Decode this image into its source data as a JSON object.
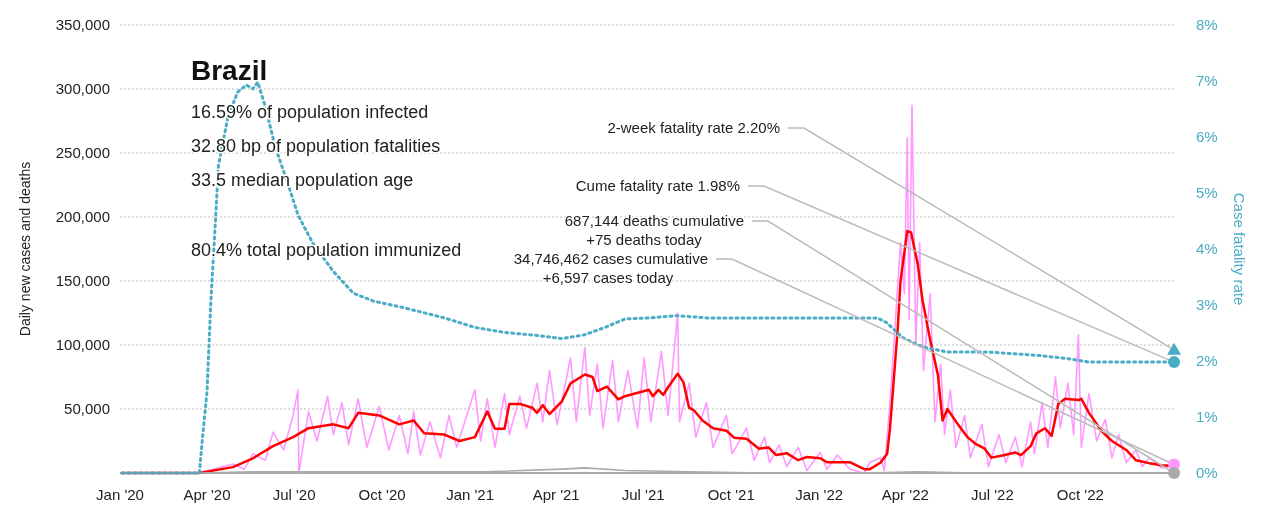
{
  "chart_data": {
    "type": "line",
    "title": "Brazil",
    "ylabel": "Daily new cases and deaths",
    "y2label": "Case fatality rate",
    "xlim": [
      "2020-01-01",
      "2023-01-09"
    ],
    "xticks": [
      {
        "value": "2020-01-01",
        "label": "Jan '20"
      },
      {
        "value": "2020-04-01",
        "label": "Apr '20"
      },
      {
        "value": "2020-07-01",
        "label": "Jul '20"
      },
      {
        "value": "2020-10-01",
        "label": "Oct '20"
      },
      {
        "value": "2021-01-01",
        "label": "Jan '21"
      },
      {
        "value": "2021-04-01",
        "label": "Apr '21"
      },
      {
        "value": "2021-07-01",
        "label": "Jul '21"
      },
      {
        "value": "2021-10-01",
        "label": "Oct '21"
      },
      {
        "value": "2022-01-01",
        "label": "Jan '22"
      },
      {
        "value": "2022-04-01",
        "label": "Apr '22"
      },
      {
        "value": "2022-07-01",
        "label": "Jul '22"
      },
      {
        "value": "2022-10-01",
        "label": "Oct '22"
      }
    ],
    "ylim": [
      0,
      350000
    ],
    "yticks": [
      {
        "value": 0,
        "label": null
      },
      {
        "value": 50000,
        "label": "50,000"
      },
      {
        "value": 100000,
        "label": "100,000"
      },
      {
        "value": 150000,
        "label": "150,000"
      },
      {
        "value": 200000,
        "label": "200,000"
      },
      {
        "value": 250000,
        "label": "250,000"
      },
      {
        "value": 300000,
        "label": "300,000"
      },
      {
        "value": 350000,
        "label": "350,000"
      }
    ],
    "y2lim": [
      0,
      8
    ],
    "y2ticks": [
      {
        "value": 0,
        "label": "0%"
      },
      {
        "value": 1,
        "label": "1%"
      },
      {
        "value": 2,
        "label": "2%"
      },
      {
        "value": 3,
        "label": "3%"
      },
      {
        "value": 4,
        "label": "4%"
      },
      {
        "value": 5,
        "label": "5%"
      },
      {
        "value": 6,
        "label": "6%"
      },
      {
        "value": 7,
        "label": "7%"
      },
      {
        "value": 8,
        "label": "8%"
      }
    ],
    "grid": "y",
    "annotations": [
      "16.59% of population infected",
      "32.80 bp of population fatalities",
      "33.5 median population age",
      "80.4% total population immunized",
      "2-week fatality rate 2.20%",
      "Cume fatality rate 1.98%",
      "687,144 deaths cumulative\n+75 deaths today",
      "34,746,462 cases cumulative\n+6,597 cases today"
    ],
    "series": [
      {
        "color": "#ff99ff",
        "x": [
          "2020-01-03",
          "2020-03-24",
          "2020-04-28",
          "2020-05-10",
          "2020-05-19",
          "2020-06-01",
          "2020-06-09",
          "2020-06-20",
          "2020-06-30",
          "2020-07-05",
          "2020-07-06",
          "2020-07-16",
          "2020-07-25",
          "2020-08-05",
          "2020-08-11",
          "2020-08-20",
          "2020-08-27",
          "2020-09-06",
          "2020-09-15",
          "2020-09-28",
          "2020-10-08",
          "2020-10-19",
          "2020-10-28",
          "2020-11-03",
          "2020-11-10",
          "2020-11-20",
          "2020-12-01",
          "2020-12-10",
          "2020-12-18",
          "2021-01-06",
          "2021-01-12",
          "2021-01-19",
          "2021-01-27",
          "2021-02-06",
          "2021-02-11",
          "2021-02-22",
          "2021-03-01",
          "2021-03-12",
          "2021-03-18",
          "2021-03-25",
          "2021-04-02",
          "2021-04-16",
          "2021-04-22",
          "2021-05-01",
          "2021-05-06",
          "2021-05-14",
          "2021-05-20",
          "2021-05-30",
          "2021-06-05",
          "2021-06-15",
          "2021-06-25",
          "2021-07-02",
          "2021-07-09",
          "2021-07-20",
          "2021-07-27",
          "2021-08-06",
          "2021-08-08",
          "2021-08-18",
          "2021-08-25",
          "2021-09-05",
          "2021-09-12",
          "2021-09-26",
          "2021-10-02",
          "2021-10-17",
          "2021-10-25",
          "2021-11-05",
          "2021-11-10",
          "2021-11-20",
          "2021-11-28",
          "2021-12-10",
          "2021-12-19",
          "2022-01-02",
          "2022-01-09",
          "2022-01-20",
          "2022-02-02",
          "2022-02-17",
          "2022-02-23",
          "2022-03-06",
          "2022-03-10",
          "2022-03-16",
          "2022-03-20",
          "2022-03-27",
          "2022-03-31",
          "2022-04-03",
          "2022-04-05",
          "2022-04-08",
          "2022-04-12",
          "2022-04-16",
          "2022-04-20",
          "2022-04-27",
          "2022-05-02",
          "2022-05-08",
          "2022-05-12",
          "2022-05-18",
          "2022-05-24",
          "2022-06-02",
          "2022-06-08",
          "2022-06-20",
          "2022-06-27",
          "2022-07-08",
          "2022-07-15",
          "2022-07-25",
          "2022-08-01",
          "2022-08-10",
          "2022-08-14",
          "2022-08-22",
          "2022-08-28",
          "2022-09-05",
          "2022-09-10",
          "2022-09-18",
          "2022-09-24",
          "2022-09-29",
          "2022-10-02",
          "2022-10-10",
          "2022-10-18",
          "2022-10-27",
          "2022-11-03",
          "2022-11-10",
          "2022-11-18",
          "2022-11-28",
          "2022-12-05",
          "2022-12-12",
          "2022-12-25",
          "2023-01-07"
        ],
        "values": [
          0,
          0,
          7000,
          3000,
          15000,
          10000,
          32000,
          18000,
          45000,
          65000,
          0,
          48000,
          25000,
          60000,
          30000,
          55000,
          22000,
          58000,
          20000,
          52000,
          18000,
          45000,
          15000,
          48000,
          14000,
          40000,
          12000,
          45000,
          20000,
          65000,
          25000,
          58000,
          20000,
          62000,
          30000,
          60000,
          35000,
          70000,
          40000,
          80000,
          38000,
          90000,
          40000,
          98000,
          45000,
          85000,
          35000,
          88000,
          40000,
          80000,
          35000,
          90000,
          40000,
          95000,
          45000,
          125000,
          40000,
          70000,
          28000,
          55000,
          20000,
          45000,
          15000,
          35000,
          10000,
          28000,
          8000,
          22000,
          5000,
          20000,
          2000,
          16000,
          3000,
          14000,
          3000,
          0,
          8000,
          12000,
          2000,
          55000,
          100000,
          180000,
          140000,
          262000,
          120000,
          287000,
          100000,
          180000,
          80000,
          140000,
          40000,
          85000,
          30000,
          65000,
          20000,
          45000,
          12000,
          38000,
          5000,
          30000,
          8000,
          28000,
          5000,
          40000,
          15000,
          55000,
          20000,
          75000,
          35000,
          70000,
          30000,
          108000,
          20000,
          62000,
          25000,
          42000,
          12000,
          30000,
          8000,
          18000,
          5000,
          12000,
          4000,
          6000
        ]
      },
      {
        "color": "#ff0000",
        "x": [
          "2020-01-03",
          "2020-03-24",
          "2020-04-28",
          "2020-05-19",
          "2020-06-09",
          "2020-06-30",
          "2020-07-16",
          "2020-08-11",
          "2020-08-27",
          "2020-09-06",
          "2020-09-28",
          "2020-10-19",
          "2020-11-03",
          "2020-11-14",
          "2020-12-05",
          "2020-12-21",
          "2021-01-06",
          "2021-01-19",
          "2021-01-27",
          "2021-02-06",
          "2021-02-11",
          "2021-02-22",
          "2021-03-07",
          "2021-03-12",
          "2021-03-18",
          "2021-03-25",
          "2021-04-07",
          "2021-04-16",
          "2021-05-01",
          "2021-05-09",
          "2021-05-14",
          "2021-05-24",
          "2021-06-05",
          "2021-06-12",
          "2021-07-07",
          "2021-07-11",
          "2021-07-17",
          "2021-07-22",
          "2021-07-27",
          "2021-08-06",
          "2021-08-12",
          "2021-08-18",
          "2021-08-23",
          "2021-09-01",
          "2021-09-12",
          "2021-09-26",
          "2021-10-04",
          "2021-10-17",
          "2021-10-30",
          "2021-11-09",
          "2021-11-17",
          "2021-11-28",
          "2021-12-10",
          "2021-12-19",
          "2022-01-02",
          "2022-01-09",
          "2022-02-02",
          "2022-02-17",
          "2022-02-23",
          "2022-03-06",
          "2022-03-13",
          "2022-03-16",
          "2022-03-24",
          "2022-03-27",
          "2022-04-03",
          "2022-04-07",
          "2022-04-14",
          "2022-04-19",
          "2022-04-27",
          "2022-05-05",
          "2022-05-10",
          "2022-05-15",
          "2022-05-26",
          "2022-06-05",
          "2022-06-13",
          "2022-06-23",
          "2022-06-30",
          "2022-07-14",
          "2022-07-25",
          "2022-07-31",
          "2022-08-10",
          "2022-08-16",
          "2022-08-25",
          "2022-09-01",
          "2022-09-08",
          "2022-09-15",
          "2022-09-29",
          "2022-10-02",
          "2022-10-10",
          "2022-10-23",
          "2022-11-03",
          "2022-11-18",
          "2022-11-28",
          "2022-12-12",
          "2022-12-25",
          "2023-01-07"
        ],
        "values": [
          0,
          0,
          4600,
          11500,
          21000,
          28000,
          35000,
          38000,
          35000,
          47000,
          45000,
          38000,
          41000,
          31000,
          30000,
          25000,
          28000,
          48000,
          34500,
          34500,
          54000,
          54000,
          51000,
          47000,
          53000,
          46000,
          56000,
          70000,
          77000,
          75000,
          64000,
          67500,
          57500,
          60000,
          65000,
          60000,
          65000,
          61000,
          67000,
          77500,
          71000,
          51000,
          49000,
          41000,
          35000,
          33000,
          27600,
          26800,
          19000,
          20000,
          14000,
          15500,
          10000,
          12500,
          11500,
          8400,
          8400,
          3000,
          3000,
          8000,
          15000,
          35000,
          112000,
          150000,
          189000,
          188000,
          163000,
          135000,
          104000,
          77000,
          41000,
          50000,
          38000,
          28000,
          23000,
          19000,
          12000,
          14000,
          16000,
          14000,
          21000,
          31000,
          35000,
          29000,
          54000,
          58000,
          57000,
          58000,
          47000,
          33000,
          25000,
          18000,
          10000,
          7700,
          6000,
          5400
        ]
      },
      {
        "color": "#aaaaaa",
        "x": [
          "2020-01-03",
          "2020-03-24",
          "2020-05-19",
          "2020-07-16",
          "2020-09-06",
          "2020-11-14",
          "2021-01-19",
          "2021-04-07",
          "2021-05-01",
          "2021-06-12",
          "2021-08-18",
          "2021-11-09",
          "2022-02-17",
          "2022-04-14",
          "2022-06-13",
          "2022-08-16",
          "2023-01-07"
        ],
        "values": [
          0,
          0,
          1000,
          1000,
          1000,
          1000,
          1000,
          3000,
          4000,
          2000,
          1000,
          0,
          0,
          1000,
          0,
          0,
          0
        ]
      },
      {
        "axis": "y2",
        "color": "#4bacc6",
        "line_style": "dotted",
        "x": [
          "2020-01-03",
          "2020-03-24",
          "2020-03-27",
          "2020-04-01",
          "2020-04-05",
          "2020-04-09",
          "2020-04-13",
          "2020-04-23",
          "2020-05-03",
          "2020-05-12",
          "2020-05-19",
          "2020-05-24",
          "2020-06-01",
          "2020-06-11",
          "2020-06-25",
          "2020-07-05",
          "2020-07-21",
          "2020-08-11",
          "2020-09-01",
          "2020-09-22",
          "2020-10-24",
          "2020-12-05",
          "2021-01-06",
          "2021-02-06",
          "2021-03-10",
          "2021-04-07",
          "2021-05-01",
          "2021-05-22",
          "2021-06-12",
          "2021-07-09",
          "2021-08-04",
          "2021-09-05",
          "2021-11-07",
          "2022-03-03",
          "2022-03-13",
          "2022-03-29",
          "2022-04-19",
          "2022-05-15",
          "2022-06-26",
          "2022-08-18",
          "2022-09-19",
          "2022-10-10",
          "2023-01-07"
        ],
        "values": [
          0,
          0,
          0.58,
          1.46,
          3.07,
          4.26,
          5.5,
          6.37,
          6.8,
          6.93,
          6.86,
          6.98,
          6.54,
          5.84,
          5.14,
          4.61,
          4.09,
          3.6,
          3.21,
          3.07,
          2.95,
          2.77,
          2.6,
          2.51,
          2.46,
          2.4,
          2.47,
          2.6,
          2.75,
          2.77,
          2.81,
          2.77,
          2.77,
          2.77,
          2.68,
          2.42,
          2.25,
          2.16,
          2.16,
          2.1,
          2.04,
          1.98,
          1.98
        ]
      },
      {
        "type": "scatter",
        "axis": "y2",
        "marker": "triangle",
        "color": "#4bacc6",
        "x": [
          "2023-01-07"
        ],
        "values": [
          2.2
        ]
      },
      {
        "type": "scatter",
        "axis": "y2",
        "marker": "circle",
        "color": "#4bacc6",
        "x": [
          "2023-01-07"
        ],
        "values": [
          1.98
        ]
      },
      {
        "type": "scatter",
        "marker": "circle",
        "color": "#ff99ff",
        "x": [
          "2023-01-07"
        ],
        "values": [
          6600
        ]
      },
      {
        "type": "scatter",
        "marker": "circle",
        "color": "#aaaaaa",
        "x": [
          "2023-01-07"
        ],
        "values": [
          0
        ]
      }
    ]
  }
}
